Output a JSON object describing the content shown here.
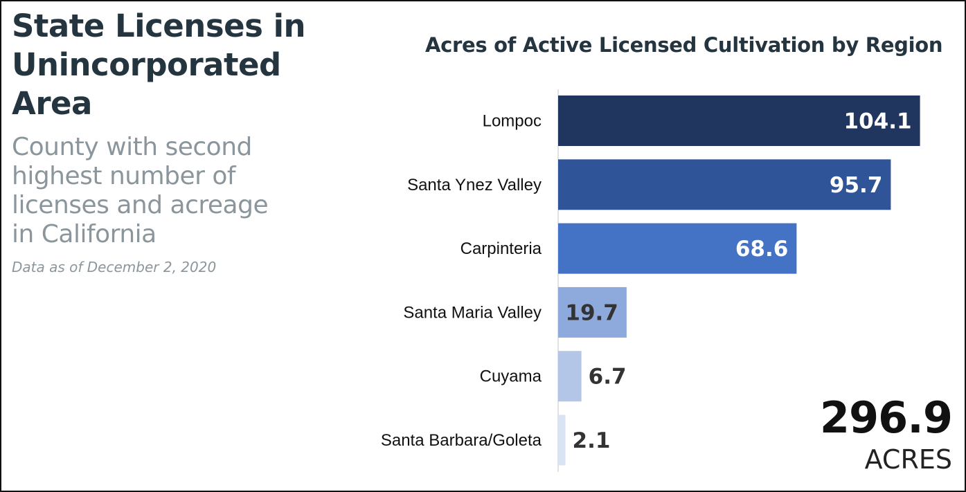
{
  "left_panel": {
    "title": "State Licenses in Unincorporated Area",
    "subtitle": "County with second highest number of licenses and acreage in California",
    "date_note": "Data as of December 2, 2020"
  },
  "total": {
    "value": "296.9",
    "unit": "ACRES"
  },
  "chart_data": {
    "type": "bar",
    "orientation": "horizontal",
    "title": "Acres of Active Licensed Cultivation by Region",
    "xlabel": "",
    "ylabel": "",
    "categories": [
      "Lompoc",
      "Santa Ynez Valley",
      "Carpinteria",
      "Santa Maria Valley",
      "Cuyama",
      "Santa Barbara/Goleta"
    ],
    "values": [
      104.1,
      95.7,
      68.6,
      19.7,
      6.7,
      2.1
    ],
    "value_labels": [
      "104.1",
      "95.7",
      "68.6",
      "19.7",
      "6.7",
      "2.1"
    ],
    "colors": [
      "#21365f",
      "#2f5498",
      "#4472c4",
      "#8ea9db",
      "#b4c6e7",
      "#dae3f3"
    ],
    "grid": false,
    "legend": "none"
  }
}
